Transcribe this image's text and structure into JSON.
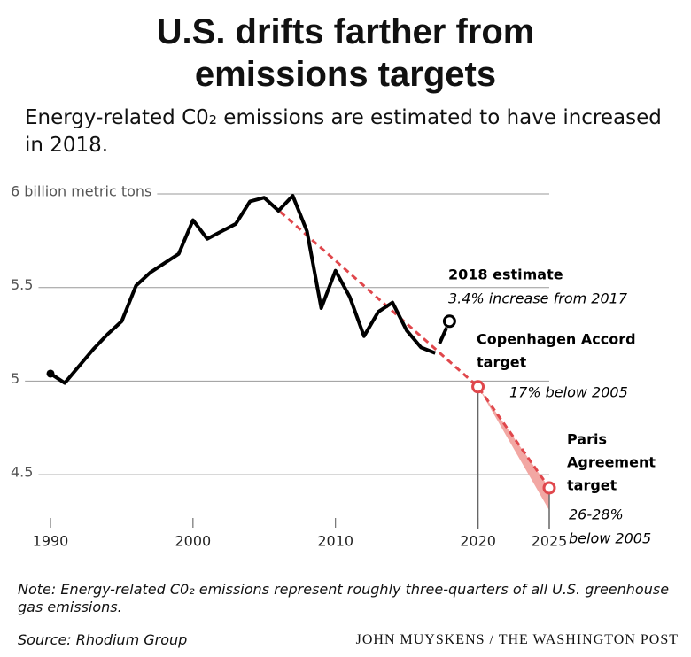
{
  "chart_data": {
    "type": "line",
    "title": "U.S. drifts farther from emissions targets",
    "subtitle": "Energy-related C0₂ emissions are estimated to have increased in 2018.",
    "note": "Note: Energy-related C0₂ emissions represent roughly three-quarters of all U.S. greenhouse gas emissions.",
    "source": "Source: Rhodium Group",
    "credit": "JOHN MUYSKENS / THE WASHINGTON POST",
    "x": [
      1990,
      1991,
      1992,
      1993,
      1994,
      1995,
      1996,
      1997,
      1998,
      1999,
      2000,
      2001,
      2002,
      2003,
      2004,
      2005,
      2006,
      2007,
      2008,
      2009,
      2010,
      2011,
      2012,
      2013,
      2014,
      2015,
      2016,
      2017
    ],
    "series": [
      {
        "color": "#000000",
        "values": [
          5.04,
          4.99,
          5.08,
          5.17,
          5.25,
          5.32,
          5.51,
          5.58,
          5.63,
          5.68,
          5.86,
          5.76,
          5.8,
          5.84,
          5.96,
          5.98,
          5.91,
          5.99,
          5.8,
          5.39,
          5.59,
          5.45,
          5.24,
          5.37,
          5.42,
          5.27,
          5.18,
          5.15
        ]
      }
    ],
    "estimate": {
      "x": 2018,
      "value": 5.32,
      "label": "2018 estimate",
      "note": "3.4% increase from 2017"
    },
    "trend": {
      "color": "#e0474c",
      "x": [
        2005,
        2020,
        2025
      ],
      "values": [
        5.98,
        4.97,
        4.43
      ]
    },
    "targets": [
      {
        "x": 2020,
        "value": 4.97,
        "label": [
          "Copenhagen Accord",
          "target"
        ],
        "note": [
          "17% below 2005"
        ]
      },
      {
        "x": 2025,
        "value": 4.43,
        "low": 4.31,
        "label": [
          "Paris",
          "Agreement",
          "target"
        ],
        "note": [
          "26-28%",
          "below 2005"
        ]
      }
    ],
    "xlim": [
      1990,
      2025
    ],
    "xticks": [
      1990,
      2000,
      2010,
      2020,
      2025
    ],
    "ylim": [
      4.25,
      6
    ],
    "yticks": [
      {
        "value": 6,
        "label": "6 billion metric tons"
      },
      5.5,
      5,
      4.5
    ],
    "grid": true
  }
}
